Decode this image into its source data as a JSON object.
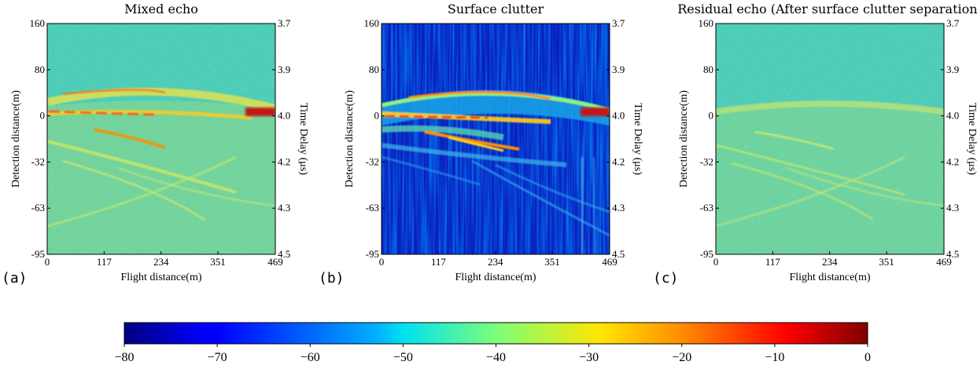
{
  "chart_data": [
    {
      "type": "heatmap",
      "panel": "(a)",
      "title": "Mixed echo",
      "xlabel": "Flight distance(m)",
      "ylabel": "Detection distance(m)",
      "ylabel_right": "Time Delay (μs)",
      "xticks": [
        "0",
        "117",
        "234",
        "351",
        "469"
      ],
      "yticks": [
        "160",
        "80",
        "0",
        "-32",
        "-63",
        "-95"
      ],
      "yticks_right": [
        "3.7",
        "3.9",
        "4.0",
        "4.2",
        "4.3",
        "4.5"
      ],
      "xlim": [
        0,
        469
      ],
      "ylim": [
        -95,
        160
      ]
    },
    {
      "type": "heatmap",
      "panel": "(b)",
      "title": "Surface clutter",
      "xlabel": "Flight distance(m)",
      "ylabel": "Detection distance(m)",
      "ylabel_right": "Time Delay (μs)",
      "xticks": [
        "0",
        "117",
        "234",
        "351",
        "469"
      ],
      "yticks": [
        "160",
        "80",
        "0",
        "-32",
        "-63",
        "-95"
      ],
      "yticks_right": [
        "3.7",
        "3.9",
        "4.0",
        "4.2",
        "4.3",
        "4.5"
      ],
      "xlim": [
        0,
        469
      ],
      "ylim": [
        -95,
        160
      ]
    },
    {
      "type": "heatmap",
      "panel": "(c)",
      "title": "Residual echo (After surface clutter separation)",
      "xlabel": "Flight distance(m)",
      "ylabel": "Detection distance(m)",
      "ylabel_right": "Time Delay (μs)",
      "xticks": [
        "0",
        "117",
        "234",
        "351",
        "469"
      ],
      "yticks": [
        "160",
        "80",
        "0",
        "-32",
        "-63",
        "-95"
      ],
      "yticks_right": [
        "3.7",
        "3.9",
        "4.0",
        "4.2",
        "4.3",
        "4.5"
      ],
      "xlim": [
        0,
        469
      ],
      "ylim": [
        -95,
        160
      ]
    }
  ],
  "colorbar": {
    "colormap": "jet",
    "range": [
      -80,
      0
    ],
    "ticks": [
      "−80",
      "−70",
      "−60",
      "−50",
      "−40",
      "−30",
      "−20",
      "−10",
      "0"
    ]
  }
}
